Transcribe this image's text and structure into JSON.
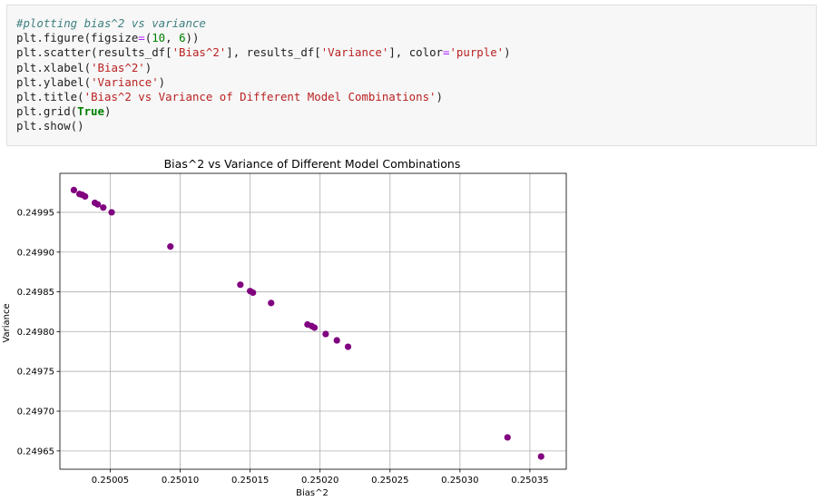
{
  "code_cell": {
    "lines": [
      [
        {
          "t": "#plotting bias^2 vs variance",
          "c": "c-comment"
        }
      ],
      [
        {
          "t": "plt.figure(figsize",
          "c": "c-plain"
        },
        {
          "t": "=",
          "c": "c-op"
        },
        {
          "t": "(",
          "c": "c-plain"
        },
        {
          "t": "10",
          "c": "c-num"
        },
        {
          "t": ", ",
          "c": "c-plain"
        },
        {
          "t": "6",
          "c": "c-num"
        },
        {
          "t": "))",
          "c": "c-plain"
        }
      ],
      [
        {
          "t": "plt.scatter(results_df[",
          "c": "c-plain"
        },
        {
          "t": "'Bias^2'",
          "c": "c-str"
        },
        {
          "t": "], results_df[",
          "c": "c-plain"
        },
        {
          "t": "'Variance'",
          "c": "c-str"
        },
        {
          "t": "], color",
          "c": "c-plain"
        },
        {
          "t": "=",
          "c": "c-op"
        },
        {
          "t": "'purple'",
          "c": "c-str"
        },
        {
          "t": ")",
          "c": "c-plain"
        }
      ],
      [
        {
          "t": "plt.xlabel(",
          "c": "c-plain"
        },
        {
          "t": "'Bias^2'",
          "c": "c-str"
        },
        {
          "t": ")",
          "c": "c-plain"
        }
      ],
      [
        {
          "t": "plt.ylabel(",
          "c": "c-plain"
        },
        {
          "t": "'Variance'",
          "c": "c-str"
        },
        {
          "t": ")",
          "c": "c-plain"
        }
      ],
      [
        {
          "t": "plt.title(",
          "c": "c-plain"
        },
        {
          "t": "'Bias^2 vs Variance of Different Model Combinations'",
          "c": "c-str"
        },
        {
          "t": ")",
          "c": "c-plain"
        }
      ],
      [
        {
          "t": "plt.grid(",
          "c": "c-plain"
        },
        {
          "t": "True",
          "c": "c-kw"
        },
        {
          "t": ")",
          "c": "c-plain"
        }
      ],
      [
        {
          "t": "plt.show()",
          "c": "c-plain"
        }
      ]
    ]
  },
  "chart_data": {
    "type": "scatter",
    "title": "Bias^2 vs Variance of Different Model Combinations",
    "xlabel": "Bias^2",
    "ylabel": "Variance",
    "xlim": [
      0.250014,
      0.250376
    ],
    "ylim": [
      0.249627,
      0.249999
    ],
    "grid": true,
    "marker_color": "#800080",
    "x_ticks": [
      0.25005,
      0.2501,
      0.25015,
      0.2502,
      0.25025,
      0.2503,
      0.25035
    ],
    "x_tick_labels": [
      "0.25005",
      "0.25010",
      "0.25015",
      "0.25020",
      "0.25025",
      "0.25030",
      "0.25035"
    ],
    "y_ticks": [
      0.24965,
      0.2497,
      0.24975,
      0.2498,
      0.24985,
      0.2499,
      0.24995
    ],
    "y_tick_labels": [
      "0.24965",
      "0.24970",
      "0.24975",
      "0.24980",
      "0.24985",
      "0.24990",
      "0.24995"
    ],
    "x": [
      0.250024,
      0.250028,
      0.25003,
      0.250032,
      0.250039,
      0.250041,
      0.250045,
      0.250051,
      0.250093,
      0.250143,
      0.25015,
      0.250152,
      0.250165,
      0.250191,
      0.250194,
      0.250196,
      0.250204,
      0.250212,
      0.25022,
      0.250334,
      0.250358
    ],
    "y": [
      0.249978,
      0.249973,
      0.249972,
      0.24997,
      0.249962,
      0.24996,
      0.249956,
      0.24995,
      0.249907,
      0.249859,
      0.249851,
      0.249849,
      0.249836,
      0.249809,
      0.249807,
      0.249805,
      0.249797,
      0.249789,
      0.249781,
      0.249667,
      0.249643
    ]
  }
}
